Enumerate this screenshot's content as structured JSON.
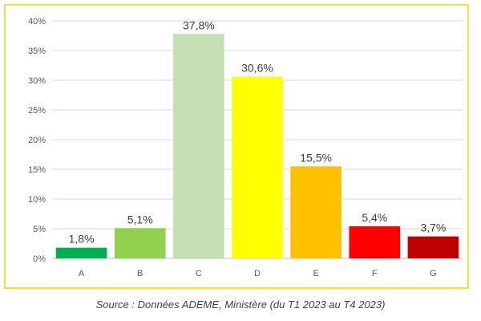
{
  "chart_data": {
    "type": "bar",
    "categories": [
      "A",
      "B",
      "C",
      "D",
      "E",
      "F",
      "G"
    ],
    "values": [
      1.8,
      5.1,
      37.8,
      30.6,
      15.5,
      5.4,
      3.7
    ],
    "value_labels": [
      "1,8%",
      "5,1%",
      "37,8%",
      "30,6%",
      "15,5%",
      "5,4%",
      "3,7%"
    ],
    "bar_colors": [
      "#00b050",
      "#92d050",
      "#c5e0b4",
      "#ffff00",
      "#ffc000",
      "#ff0000",
      "#c00000"
    ],
    "ylim": [
      0,
      40
    ],
    "yticks": [
      0,
      5,
      10,
      15,
      20,
      25,
      30,
      35,
      40
    ],
    "ytick_labels": [
      "0%",
      "5%",
      "10%",
      "15%",
      "20%",
      "25%",
      "30%",
      "35%",
      "40%"
    ],
    "grid": true,
    "legend": "none",
    "title": "",
    "xlabel": "",
    "ylabel": ""
  },
  "frame_color": "#f7e23a",
  "source_text": "Source : Données ADEME, Ministère (du T1 2023 au T4 2023)"
}
